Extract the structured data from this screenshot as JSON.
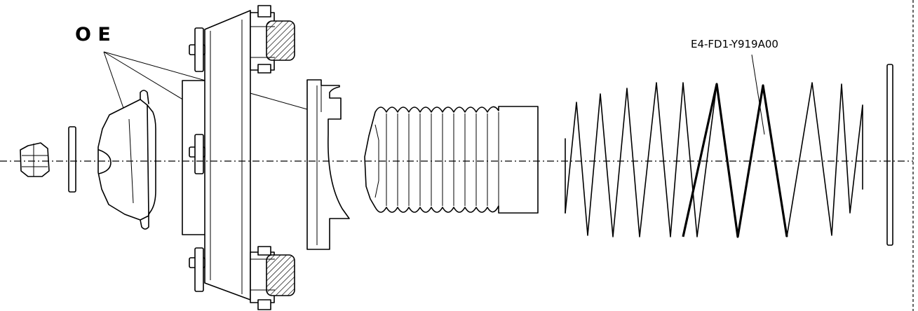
{
  "labels": {
    "oe": "O E",
    "part_number": "E4-FD1-Y919A00"
  }
}
